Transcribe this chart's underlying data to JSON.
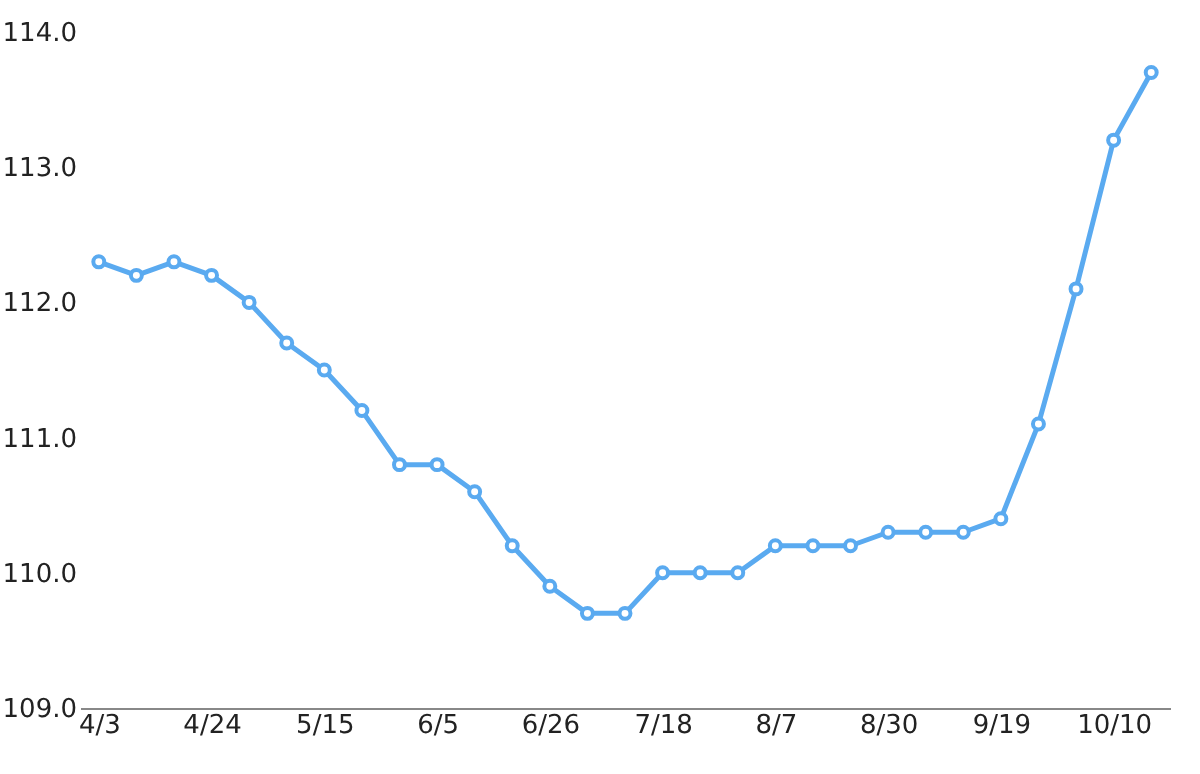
{
  "chart_data": {
    "type": "line",
    "categories": [
      "4/3",
      null,
      null,
      "4/24",
      null,
      null,
      "5/15",
      null,
      null,
      "6/5",
      null,
      null,
      "6/26",
      null,
      null,
      "7/18",
      null,
      null,
      "8/7",
      null,
      null,
      "8/30",
      null,
      null,
      "9/19",
      null,
      null,
      "10/10",
      null
    ],
    "series": [
      {
        "color": "#5aaaf0",
        "values": [
          112.3,
          112.2,
          112.3,
          112.2,
          112.0,
          111.7,
          111.5,
          111.2,
          110.8,
          110.8,
          110.6,
          110.2,
          109.9,
          109.7,
          109.7,
          110.0,
          110.0,
          110.0,
          110.2,
          110.2,
          110.2,
          110.3,
          110.3,
          110.3,
          110.4,
          111.1,
          112.1,
          113.2,
          113.7
        ]
      }
    ],
    "ylim": [
      109,
      114
    ],
    "yticks": [
      {
        "value": 109,
        "label": "109.0"
      },
      {
        "value": 110,
        "label": "110.0"
      },
      {
        "value": 111,
        "label": "111.0"
      },
      {
        "value": 112,
        "label": "112.0"
      },
      {
        "value": 113,
        "label": "113.0"
      },
      {
        "value": 114,
        "label": "114.0"
      }
    ],
    "grid": false,
    "marker": "circle",
    "line_style": "solid"
  }
}
